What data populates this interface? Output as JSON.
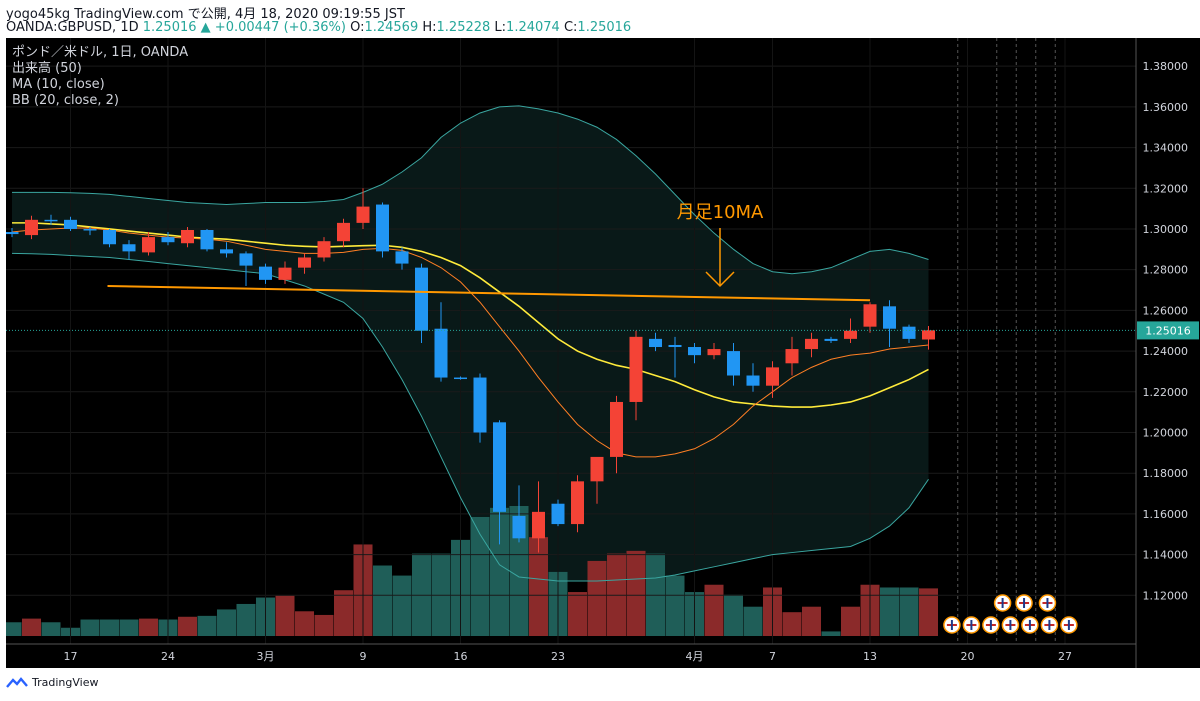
{
  "header": {
    "line1": "yogo45kg TradingView.com で公開, 4月 18, 2020 09:19:55 JST",
    "symbol": "OANDA:GBPUSD, 1D",
    "last": "1.25016",
    "change": "+0.00447 (+0.36%)",
    "ohlc": [
      {
        "label": "O:",
        "value": "1.24569"
      },
      {
        "label": "H:",
        "value": "1.25228"
      },
      {
        "label": "L:",
        "value": "1.24074"
      },
      {
        "label": "C:",
        "value": "1.25016"
      }
    ]
  },
  "legend": [
    "ポンド／米ドル, 1日, OANDA",
    "出来高 (50)",
    "MA (10, close)",
    "BB (20, close, 2)"
  ],
  "annotation": "月足10MA",
  "price_badge": "1.25016",
  "footer": {
    "brand": "TradingView"
  },
  "colors": {
    "up": "#f44336",
    "down": "#2196f3",
    "vol_up": "#8b2a2a",
    "vol_down": "#1f5e58",
    "ma": "#ff7f24",
    "bb_mid": "#ffeb3b",
    "bb_band": "#3aa6a0",
    "hline": "#ff9800",
    "annotation": "#ff9800"
  },
  "chart_data": {
    "type": "candlestick",
    "y_ticks": [
      "1.38000",
      "1.36000",
      "1.34000",
      "1.32000",
      "1.30000",
      "1.28000",
      "1.26000",
      "1.24000",
      "1.22000",
      "1.20000",
      "1.18000",
      "1.16000",
      "1.14000",
      "1.12000"
    ],
    "x_ticks": [
      {
        "i": 3,
        "label": "17"
      },
      {
        "i": 8,
        "label": "24"
      },
      {
        "i": 13,
        "label": "3月"
      },
      {
        "i": 18,
        "label": "9"
      },
      {
        "i": 23,
        "label": "16"
      },
      {
        "i": 28,
        "label": "23"
      },
      {
        "i": 35,
        "label": "4月"
      },
      {
        "i": 39,
        "label": "7"
      },
      {
        "i": 44,
        "label": "13"
      },
      {
        "i": 49,
        "label": "20"
      },
      {
        "i": 54,
        "label": "27"
      }
    ],
    "ylim": [
      1.1,
      1.385
    ],
    "candles": [
      {
        "o": 1.2985,
        "h": 1.3005,
        "l": 1.296,
        "c": 1.2975
      },
      {
        "o": 1.297,
        "h": 1.3065,
        "l": 1.295,
        "c": 1.3045
      },
      {
        "o": 1.3045,
        "h": 1.307,
        "l": 1.302,
        "c": 1.304
      },
      {
        "o": 1.3045,
        "h": 1.306,
        "l": 1.299,
        "c": 1.3
      },
      {
        "o": 1.3,
        "h": 1.301,
        "l": 1.297,
        "c": 1.2995
      },
      {
        "o": 1.2995,
        "h": 1.3,
        "l": 1.291,
        "c": 1.2925
      },
      {
        "o": 1.2925,
        "h": 1.2945,
        "l": 1.285,
        "c": 1.289
      },
      {
        "o": 1.2885,
        "h": 1.2985,
        "l": 1.287,
        "c": 1.296
      },
      {
        "o": 1.296,
        "h": 1.2985,
        "l": 1.292,
        "c": 1.2935
      },
      {
        "o": 1.293,
        "h": 1.301,
        "l": 1.291,
        "c": 1.2995
      },
      {
        "o": 1.2995,
        "h": 1.3,
        "l": 1.289,
        "c": 1.29
      },
      {
        "o": 1.29,
        "h": 1.2935,
        "l": 1.286,
        "c": 1.288
      },
      {
        "o": 1.288,
        "h": 1.289,
        "l": 1.272,
        "c": 1.282
      },
      {
        "o": 1.2815,
        "h": 1.283,
        "l": 1.273,
        "c": 1.275
      },
      {
        "o": 1.275,
        "h": 1.284,
        "l": 1.273,
        "c": 1.281
      },
      {
        "o": 1.281,
        "h": 1.288,
        "l": 1.278,
        "c": 1.286
      },
      {
        "o": 1.286,
        "h": 1.296,
        "l": 1.284,
        "c": 1.294
      },
      {
        "o": 1.294,
        "h": 1.305,
        "l": 1.291,
        "c": 1.303
      },
      {
        "o": 1.303,
        "h": 1.32,
        "l": 1.3,
        "c": 1.311
      },
      {
        "o": 1.312,
        "h": 1.313,
        "l": 1.286,
        "c": 1.289
      },
      {
        "o": 1.289,
        "h": 1.291,
        "l": 1.28,
        "c": 1.283
      },
      {
        "o": 1.281,
        "h": 1.283,
        "l": 1.244,
        "c": 1.25
      },
      {
        "o": 1.251,
        "h": 1.264,
        "l": 1.225,
        "c": 1.227
      },
      {
        "o": 1.227,
        "h": 1.2275,
        "l": 1.226,
        "c": 1.2265
      },
      {
        "o": 1.227,
        "h": 1.229,
        "l": 1.195,
        "c": 1.2
      },
      {
        "o": 1.205,
        "h": 1.206,
        "l": 1.145,
        "c": 1.161
      },
      {
        "o": 1.159,
        "h": 1.174,
        "l": 1.146,
        "c": 1.148
      },
      {
        "o": 1.148,
        "h": 1.176,
        "l": 1.141,
        "c": 1.161
      },
      {
        "o": 1.165,
        "h": 1.167,
        "l": 1.154,
        "c": 1.155
      },
      {
        "o": 1.155,
        "h": 1.179,
        "l": 1.151,
        "c": 1.176
      },
      {
        "o": 1.176,
        "h": 1.186,
        "l": 1.165,
        "c": 1.188
      },
      {
        "o": 1.188,
        "h": 1.218,
        "l": 1.18,
        "c": 1.215
      },
      {
        "o": 1.215,
        "h": 1.25,
        "l": 1.206,
        "c": 1.247
      },
      {
        "o": 1.246,
        "h": 1.249,
        "l": 1.24,
        "c": 1.242
      },
      {
        "o": 1.243,
        "h": 1.247,
        "l": 1.227,
        "c": 1.242
      },
      {
        "o": 1.242,
        "h": 1.244,
        "l": 1.234,
        "c": 1.238
      },
      {
        "o": 1.238,
        "h": 1.244,
        "l": 1.236,
        "c": 1.241
      },
      {
        "o": 1.24,
        "h": 1.244,
        "l": 1.223,
        "c": 1.228
      },
      {
        "o": 1.228,
        "h": 1.234,
        "l": 1.22,
        "c": 1.223
      },
      {
        "o": 1.223,
        "h": 1.235,
        "l": 1.217,
        "c": 1.232
      },
      {
        "o": 1.234,
        "h": 1.247,
        "l": 1.228,
        "c": 1.241
      },
      {
        "o": 1.241,
        "h": 1.249,
        "l": 1.237,
        "c": 1.246
      },
      {
        "o": 1.246,
        "h": 1.247,
        "l": 1.244,
        "c": 1.245
      },
      {
        "o": 1.246,
        "h": 1.256,
        "l": 1.244,
        "c": 1.25
      },
      {
        "o": 1.252,
        "h": 1.264,
        "l": 1.249,
        "c": 1.263
      },
      {
        "o": 1.262,
        "h": 1.265,
        "l": 1.242,
        "c": 1.251
      },
      {
        "o": 1.252,
        "h": 1.253,
        "l": 1.244,
        "c": 1.246
      },
      {
        "o": 1.2457,
        "h": 1.2523,
        "l": 1.2407,
        "c": 1.2502
      }
    ],
    "volume_max": 1.0,
    "volume": [
      0.15,
      0.19,
      0.15,
      0.09,
      0.18,
      0.18,
      0.18,
      0.19,
      0.18,
      0.21,
      0.22,
      0.29,
      0.35,
      0.42,
      0.44,
      0.27,
      0.23,
      0.5,
      1.0,
      0.77,
      0.66,
      0.9,
      0.9,
      1.05,
      1.3,
      1.4,
      1.42,
      1.08,
      0.7,
      0.48,
      0.82,
      0.9,
      0.93,
      0.9,
      0.66,
      0.48,
      0.56,
      0.45,
      0.32,
      0.53,
      0.26,
      0.32,
      0.05,
      0.32,
      0.56,
      0.53,
      0.53,
      0.52
    ],
    "ma10": [
      1.2985,
      1.2995,
      1.3,
      1.3005,
      1.3005,
      1.2995,
      1.298,
      1.297,
      1.296,
      1.2955,
      1.295,
      1.294,
      1.292,
      1.29,
      1.289,
      1.288,
      1.288,
      1.2885,
      1.29,
      1.2905,
      1.2895,
      1.286,
      1.281,
      1.274,
      1.264,
      1.252,
      1.24,
      1.227,
      1.215,
      1.204,
      1.196,
      1.19,
      1.188,
      1.188,
      1.1895,
      1.192,
      1.197,
      1.204,
      1.213,
      1.22,
      1.227,
      1.232,
      1.236,
      1.238,
      1.239,
      1.241,
      1.242,
      1.243
    ],
    "bb_mid": [
      1.303,
      1.303,
      1.3025,
      1.302,
      1.301,
      1.3,
      1.299,
      1.298,
      1.297,
      1.296,
      1.2955,
      1.295,
      1.294,
      1.293,
      1.292,
      1.2915,
      1.2912,
      1.2915,
      1.2918,
      1.292,
      1.291,
      1.289,
      1.286,
      1.282,
      1.276,
      1.269,
      1.262,
      1.254,
      1.246,
      1.24,
      1.236,
      1.233,
      1.231,
      1.228,
      1.225,
      1.221,
      1.2175,
      1.215,
      1.214,
      1.213,
      1.2125,
      1.2125,
      1.2135,
      1.215,
      1.218,
      1.222,
      1.226,
      1.231
    ],
    "bb_upper": [
      1.318,
      1.318,
      1.318,
      1.3178,
      1.3175,
      1.317,
      1.316,
      1.315,
      1.314,
      1.313,
      1.3125,
      1.312,
      1.3125,
      1.313,
      1.313,
      1.313,
      1.3135,
      1.3145,
      1.318,
      1.322,
      1.328,
      1.335,
      1.345,
      1.352,
      1.357,
      1.36,
      1.3605,
      1.359,
      1.357,
      1.354,
      1.35,
      1.344,
      1.336,
      1.327,
      1.317,
      1.307,
      1.298,
      1.29,
      1.283,
      1.279,
      1.278,
      1.279,
      1.281,
      1.285,
      1.289,
      1.29,
      1.288,
      1.285
    ],
    "bb_lower": [
      1.288,
      1.2878,
      1.2875,
      1.287,
      1.2865,
      1.286,
      1.285,
      1.284,
      1.283,
      1.282,
      1.281,
      1.28,
      1.279,
      1.278,
      1.275,
      1.272,
      1.268,
      1.264,
      1.256,
      1.242,
      1.226,
      1.208,
      1.188,
      1.168,
      1.15,
      1.135,
      1.129,
      1.128,
      1.127,
      1.127,
      1.127,
      1.1275,
      1.128,
      1.1285,
      1.13,
      1.132,
      1.134,
      1.136,
      1.138,
      1.14,
      1.141,
      1.142,
      1.143,
      1.144,
      1.148,
      1.154,
      1.163,
      1.177
    ],
    "hline": {
      "from": 5,
      "to": 44,
      "y_start": 1.272,
      "y_end": 1.265
    }
  }
}
